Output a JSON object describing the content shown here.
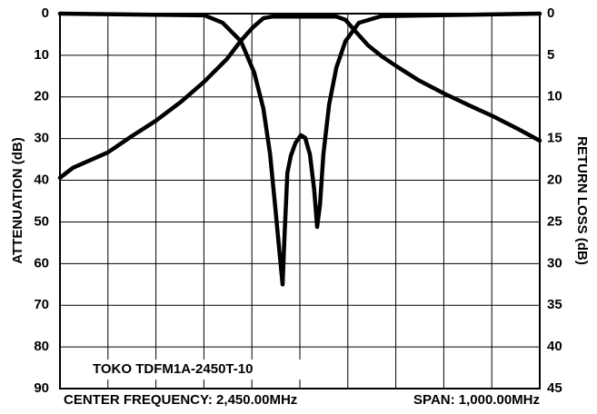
{
  "chart_data": {
    "type": "line",
    "annotation": "TOKO TDFM1A-2450T-10",
    "x_label_left": "CENTER FREQUENCY: 2,450.00MHz",
    "x_label_right": "SPAN: 1,000.00MHz",
    "y_label": "ATTENUATION (dB)",
    "y2_label": "RETURN LOSS (dB)",
    "xlim": [
      1950,
      2950
    ],
    "xticks": [
      1950,
      2050,
      2150,
      2250,
      2350,
      2450,
      2550,
      2650,
      2750,
      2850,
      2950
    ],
    "ylim": [
      0,
      90
    ],
    "yticks": [
      0,
      10,
      20,
      30,
      40,
      50,
      60,
      70,
      80,
      90
    ],
    "y2lim": [
      0,
      45
    ],
    "y2ticks": [
      0,
      5,
      10,
      15,
      20,
      25,
      30,
      35,
      40,
      45
    ],
    "y_inverted": true,
    "grid": true,
    "series": [
      {
        "color": "#000000",
        "x": [
          1950,
          1977,
          2050,
          2100,
          2150,
          2203,
          2251,
          2298,
          2327,
          2352,
          2374,
          2393,
          2452,
          2526,
          2545,
          2567,
          2592,
          2620,
          2651,
          2696,
          2751,
          2810,
          2852,
          2905,
          2950
        ],
        "values": [
          39.4,
          37,
          33.3,
          29.4,
          25.7,
          21.1,
          16.3,
          10.9,
          6.5,
          3.3,
          1.1,
          0.7,
          0.7,
          0.7,
          1.5,
          4.4,
          7.6,
          10.2,
          12.6,
          15.9,
          19.2,
          22.4,
          24.6,
          27.7,
          30.5
        ]
      },
      {
        "color": "#000000",
        "axis": "y2",
        "x": [
          1950,
          2251,
          2289,
          2327,
          2355,
          2374,
          2388,
          2399,
          2408,
          2414,
          2418,
          2424,
          2431,
          2441,
          2452,
          2461,
          2471,
          2480,
          2486,
          2492,
          2499,
          2511,
          2526,
          2545,
          2573,
          2620,
          2950
        ],
        "values": [
          0,
          0.2,
          1.1,
          3.3,
          7.1,
          11.4,
          16.9,
          23.4,
          28.9,
          32.5,
          26.7,
          19.1,
          17.1,
          15.5,
          14.6,
          14.9,
          16.9,
          21.2,
          25.6,
          22.9,
          16.9,
          10.9,
          6.5,
          3.3,
          1.1,
          0.3,
          0
        ]
      }
    ]
  }
}
